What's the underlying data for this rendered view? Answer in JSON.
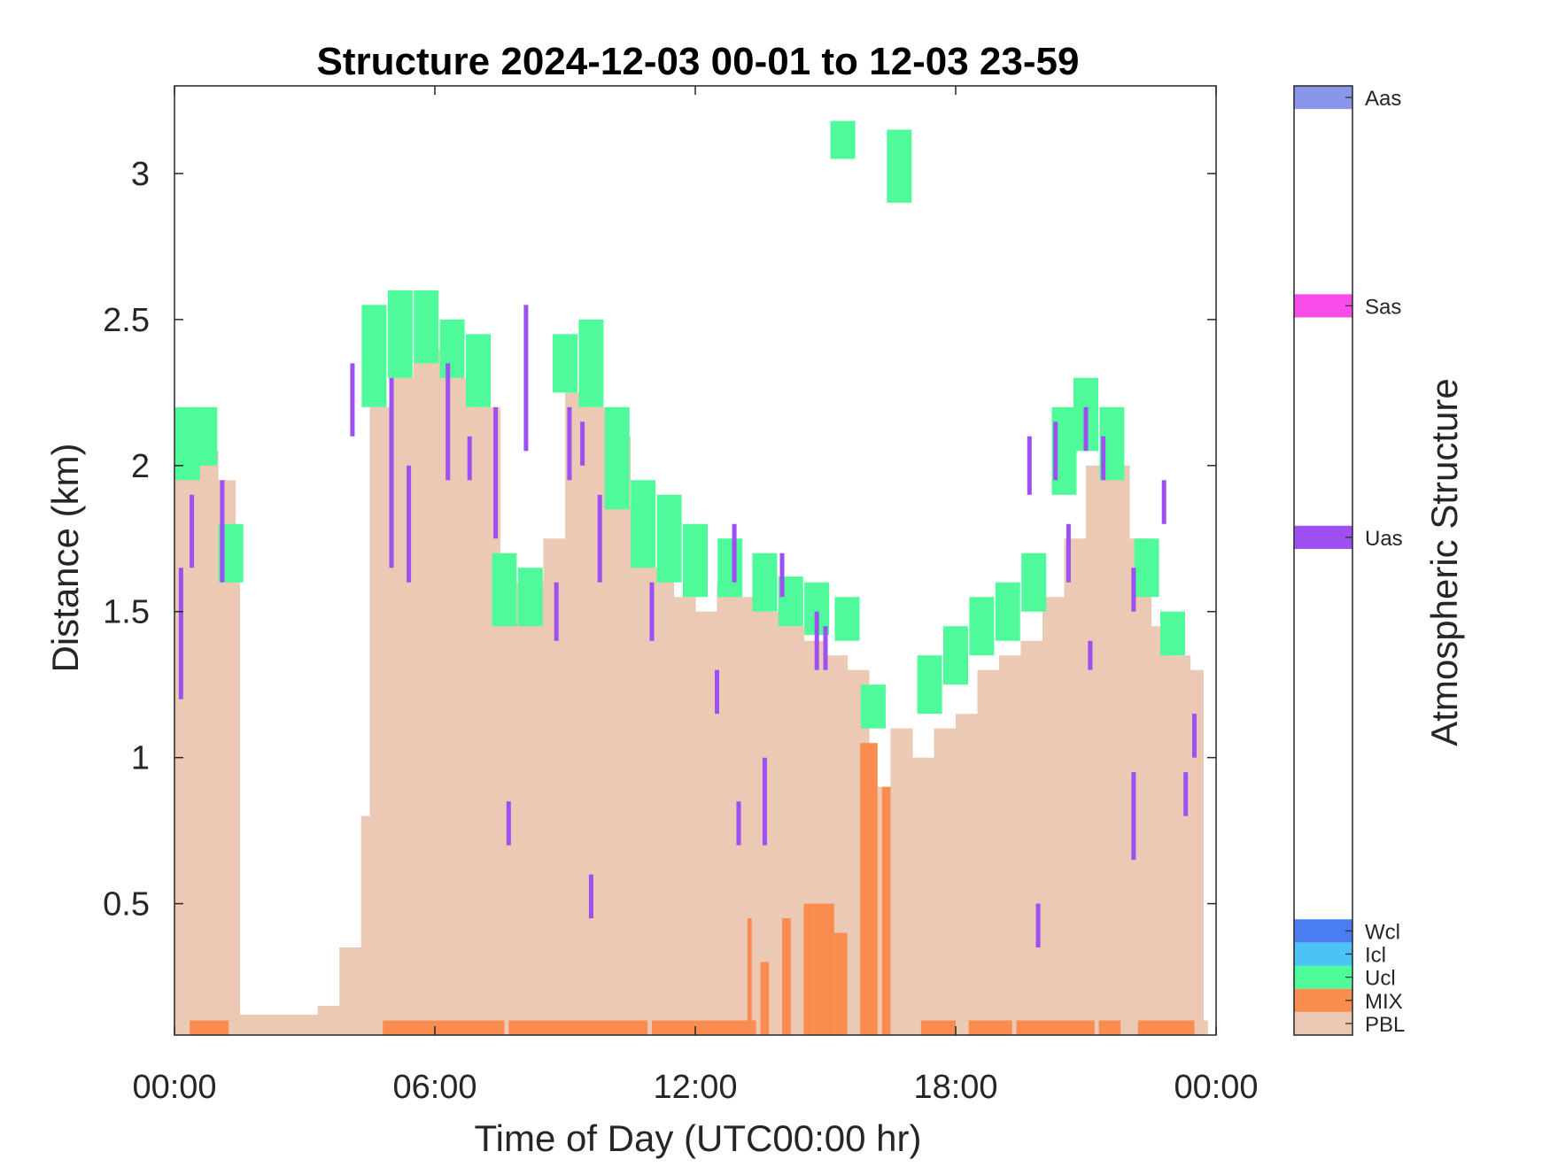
{
  "chart_data": {
    "type": "heatmap",
    "title": "Structure 2024-12-03 00-01 to 12-03 23-59",
    "xlabel": "Time of Day (UTC00:00 hr)",
    "ylabel": "Distance (km)",
    "colorbar_label": "Atmospheric Structure",
    "x_range_hours": [
      0,
      24
    ],
    "ylim": [
      0.05,
      3.3
    ],
    "x_ticks": [
      {
        "value": 0,
        "label": "00:00"
      },
      {
        "value": 6,
        "label": "06:00"
      },
      {
        "value": 12,
        "label": "12:00"
      },
      {
        "value": 18,
        "label": "18:00"
      },
      {
        "value": 24,
        "label": "00:00"
      }
    ],
    "y_ticks": [
      {
        "value": 0.5,
        "label": "0.5"
      },
      {
        "value": 1,
        "label": "1"
      },
      {
        "value": 1.5,
        "label": "1.5"
      },
      {
        "value": 2,
        "label": "2"
      },
      {
        "value": 2.5,
        "label": "2.5"
      },
      {
        "value": 3,
        "label": "3"
      }
    ],
    "grid": false,
    "classes": [
      {
        "code": "PBL",
        "label": "PBL",
        "color": "#ecc9b4"
      },
      {
        "code": "MIX",
        "label": "MIX",
        "color": "#f98c4e"
      },
      {
        "code": "Ucl",
        "label": "Ucl",
        "color": "#4ffa9b"
      },
      {
        "code": "Icl",
        "label": "Icl",
        "color": "#4cc3f7"
      },
      {
        "code": "Wcl",
        "label": "Wcl",
        "color": "#4a7cf2"
      },
      {
        "code": "Uas",
        "label": "Uas",
        "color": "#9d4ff2"
      },
      {
        "code": "Sas",
        "label": "Sas",
        "color": "#f74cea"
      },
      {
        "code": "Aas",
        "label": "Aas",
        "color": "#8a96ea"
      }
    ],
    "pbl_top_km": [
      [
        0.0,
        2.0
      ],
      [
        0.5,
        2.05
      ],
      [
        1.0,
        1.95
      ],
      [
        1.4,
        1.75
      ],
      [
        1.5,
        0.12
      ],
      [
        3.3,
        0.15
      ],
      [
        3.8,
        0.35
      ],
      [
        4.3,
        0.8
      ],
      [
        4.5,
        2.2
      ],
      [
        5.0,
        2.3
      ],
      [
        5.5,
        2.35
      ],
      [
        6.0,
        2.4
      ],
      [
        6.5,
        2.3
      ],
      [
        7.0,
        2.2
      ],
      [
        7.5,
        1.6
      ],
      [
        8.0,
        1.6
      ],
      [
        8.5,
        1.75
      ],
      [
        9.0,
        2.25
      ],
      [
        9.5,
        2.2
      ],
      [
        10.0,
        2.1
      ],
      [
        10.5,
        1.85
      ],
      [
        11.0,
        1.65
      ],
      [
        11.5,
        1.55
      ],
      [
        12.0,
        1.5
      ],
      [
        12.5,
        1.6
      ],
      [
        13.0,
        1.55
      ],
      [
        13.5,
        1.5
      ],
      [
        14.0,
        1.45
      ],
      [
        14.5,
        1.4
      ],
      [
        15.0,
        1.35
      ],
      [
        15.5,
        1.3
      ],
      [
        16.0,
        0.9
      ],
      [
        16.5,
        1.1
      ],
      [
        17.0,
        1.0
      ],
      [
        17.5,
        1.1
      ],
      [
        18.0,
        1.15
      ],
      [
        18.5,
        1.3
      ],
      [
        19.0,
        1.35
      ],
      [
        19.5,
        1.4
      ],
      [
        20.0,
        1.55
      ],
      [
        20.5,
        1.75
      ],
      [
        21.0,
        2.0
      ],
      [
        21.5,
        2.0
      ],
      [
        22.0,
        1.75
      ],
      [
        22.5,
        1.45
      ],
      [
        23.0,
        1.35
      ],
      [
        23.4,
        1.3
      ],
      [
        23.7,
        0.1
      ]
    ],
    "ucl_layers_km": [
      [
        0.3,
        1.95,
        2.2
      ],
      [
        0.7,
        2.0,
        2.2
      ],
      [
        1.3,
        1.6,
        1.8
      ],
      [
        4.6,
        2.2,
        2.55
      ],
      [
        5.2,
        2.3,
        2.6
      ],
      [
        5.8,
        2.35,
        2.6
      ],
      [
        6.4,
        2.3,
        2.5
      ],
      [
        7.0,
        2.2,
        2.45
      ],
      [
        7.6,
        1.45,
        1.7
      ],
      [
        8.2,
        1.45,
        1.65
      ],
      [
        9.0,
        2.25,
        2.45
      ],
      [
        9.6,
        2.2,
        2.5
      ],
      [
        10.2,
        1.85,
        2.2
      ],
      [
        10.8,
        1.65,
        1.95
      ],
      [
        11.4,
        1.6,
        1.9
      ],
      [
        12.0,
        1.55,
        1.8
      ],
      [
        12.8,
        1.55,
        1.75
      ],
      [
        13.6,
        1.5,
        1.7
      ],
      [
        14.2,
        1.45,
        1.62
      ],
      [
        14.8,
        1.42,
        1.6
      ],
      [
        15.5,
        1.4,
        1.55
      ],
      [
        16.1,
        1.1,
        1.25
      ],
      [
        17.4,
        1.15,
        1.35
      ],
      [
        18.0,
        1.25,
        1.45
      ],
      [
        18.6,
        1.35,
        1.55
      ],
      [
        19.2,
        1.4,
        1.6
      ],
      [
        19.8,
        1.5,
        1.7
      ],
      [
        20.5,
        1.9,
        2.2
      ],
      [
        21.0,
        2.05,
        2.3
      ],
      [
        21.6,
        1.95,
        2.2
      ],
      [
        22.4,
        1.55,
        1.75
      ],
      [
        23.0,
        1.35,
        1.5
      ],
      [
        15.4,
        3.05,
        3.18
      ],
      [
        16.7,
        2.9,
        3.15
      ]
    ],
    "uas_columns_km": [
      [
        0.15,
        1.2,
        1.65
      ],
      [
        0.4,
        1.65,
        1.9
      ],
      [
        1.1,
        1.6,
        1.95
      ],
      [
        4.1,
        2.1,
        2.35
      ],
      [
        5.0,
        1.65,
        2.3
      ],
      [
        5.4,
        1.6,
        2.0
      ],
      [
        6.3,
        1.95,
        2.35
      ],
      [
        6.8,
        1.95,
        2.1
      ],
      [
        7.4,
        1.75,
        2.2
      ],
      [
        8.1,
        2.05,
        2.55
      ],
      [
        8.8,
        1.4,
        1.6
      ],
      [
        9.1,
        1.95,
        2.2
      ],
      [
        9.4,
        2.0,
        2.15
      ],
      [
        9.8,
        1.6,
        1.9
      ],
      [
        11.0,
        1.4,
        1.6
      ],
      [
        12.5,
        1.15,
        1.3
      ],
      [
        13.0,
        0.7,
        0.85
      ],
      [
        13.6,
        0.7,
        1.0
      ],
      [
        12.9,
        1.6,
        1.8
      ],
      [
        14.0,
        1.55,
        1.7
      ],
      [
        14.8,
        1.3,
        1.5
      ],
      [
        15.0,
        1.3,
        1.45
      ],
      [
        7.7,
        0.7,
        0.85
      ],
      [
        9.6,
        0.45,
        0.6
      ],
      [
        19.7,
        1.9,
        2.1
      ],
      [
        19.9,
        0.35,
        0.5
      ],
      [
        20.3,
        1.95,
        2.15
      ],
      [
        20.6,
        1.6,
        1.8
      ],
      [
        21.1,
        1.3,
        1.4
      ],
      [
        21.4,
        1.95,
        2.1
      ],
      [
        22.1,
        1.5,
        1.65
      ],
      [
        22.1,
        0.65,
        0.95
      ],
      [
        22.8,
        1.8,
        1.95
      ],
      [
        23.3,
        0.8,
        0.95
      ],
      [
        23.5,
        1.0,
        1.15
      ],
      [
        21.0,
        2.05,
        2.2
      ]
    ],
    "mix_layers_km": [
      [
        0.35,
        1.25,
        0.1
      ],
      [
        4.8,
        7.6,
        0.1
      ],
      [
        7.7,
        10.9,
        0.1
      ],
      [
        11.0,
        13.4,
        0.1
      ],
      [
        13.2,
        13.3,
        0.45
      ],
      [
        13.5,
        13.7,
        0.3
      ],
      [
        14.0,
        14.2,
        0.45
      ],
      [
        14.5,
        14.7,
        0.5
      ],
      [
        14.7,
        15.2,
        0.5
      ],
      [
        15.2,
        15.5,
        0.4
      ],
      [
        15.8,
        16.2,
        1.05
      ],
      [
        16.3,
        16.5,
        0.9
      ],
      [
        17.2,
        18.0,
        0.1
      ],
      [
        18.3,
        19.3,
        0.1
      ],
      [
        19.4,
        21.2,
        0.1
      ],
      [
        21.3,
        21.8,
        0.1
      ],
      [
        22.2,
        23.5,
        0.1
      ]
    ]
  }
}
